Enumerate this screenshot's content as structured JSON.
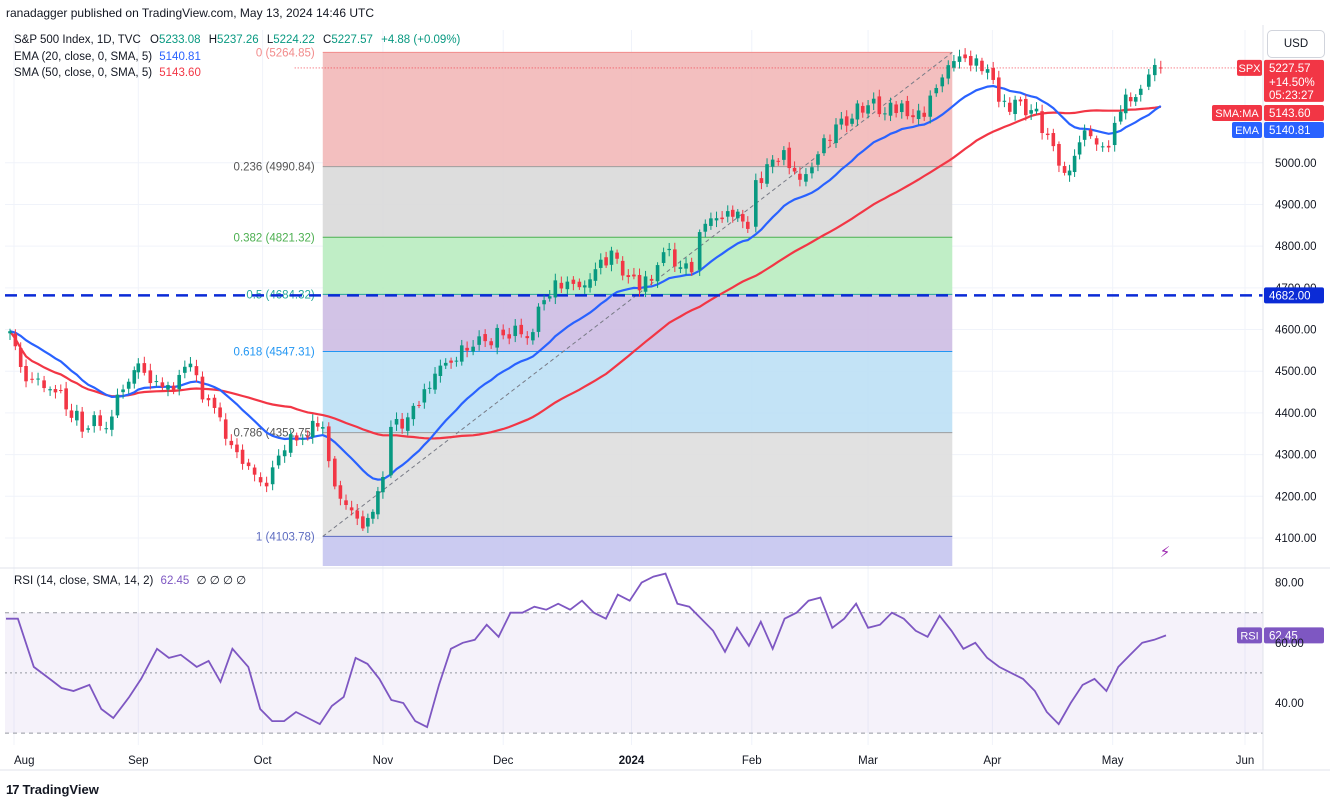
{
  "header": {
    "publisher": "ranadagger published on TradingView.com, May 13, 2024 14:46 UTC",
    "instrument": "S&P 500 Index, 1D, TVC",
    "ohlc": {
      "O": "5233.08",
      "H": "5237.26",
      "L": "5224.22",
      "C": "5227.57",
      "change": "+4.88 (+0.09%)"
    },
    "ema_label": "EMA (20, close, 0, SMA, 5)",
    "ema_value": "5140.81",
    "sma_label": "SMA (50, close, 0, SMA, 5)",
    "sma_value": "5143.60",
    "rsi_label": "RSI (14, close, SMA, 14, 2)",
    "rsi_value": "62.45",
    "rsi_extra": "∅ ∅ ∅ ∅",
    "currency": "USD"
  },
  "branding": {
    "name": "TradingView",
    "mark": "17"
  },
  "colors": {
    "up": "#089981",
    "down": "#f23645",
    "ema": "#2962ff",
    "sma": "#f23645",
    "rsi": "#7e57c2",
    "support": "#0b2bd6",
    "grid": "#f0f3fa",
    "text": "#131722",
    "fib_0": "#f2b8b8",
    "fib_236": "#d9d9d9",
    "fib_382": "#b9ecc0",
    "fib_5": "#cdbde3",
    "fib_618": "#bde0f5",
    "fib_786": "#dedede",
    "fib_1": "#c5c5f0"
  },
  "chart_data": [
    {
      "type": "candlestick",
      "title": "S&P 500 Index, 1D, TVC",
      "xlabel": "",
      "ylabel": "USD",
      "x_tick_labels": [
        "Aug",
        "Sep",
        "Oct",
        "Nov",
        "Dec",
        "2024",
        "Feb",
        "Mar",
        "Apr",
        "May",
        "Jun"
      ],
      "y_tick_labels": [
        "4100.00",
        "4200.00",
        "4300.00",
        "4400.00",
        "4500.00",
        "4600.00",
        "4700.00",
        "4800.00",
        "4900.00",
        "5000.00"
      ],
      "y_ticks": [
        4100,
        4200,
        4300,
        4400,
        4500,
        4600,
        4700,
        4800,
        4900,
        5000
      ],
      "ylim": [
        4040,
        5300
      ],
      "grid": true,
      "close_series": [
        {
          "date": "2023-07-31",
          "close": 4588
        },
        {
          "date": "2023-08-04",
          "close": 4478
        },
        {
          "date": "2023-08-10",
          "close": 4468
        },
        {
          "date": "2023-08-18",
          "close": 4370
        },
        {
          "date": "2023-08-24",
          "close": 4376
        },
        {
          "date": "2023-08-31",
          "close": 4508
        },
        {
          "date": "2023-09-01",
          "close": 4515
        },
        {
          "date": "2023-09-07",
          "close": 4451
        },
        {
          "date": "2023-09-14",
          "close": 4505
        },
        {
          "date": "2023-09-20",
          "close": 4402
        },
        {
          "date": "2023-09-27",
          "close": 4275
        },
        {
          "date": "2023-10-03",
          "close": 4229
        },
        {
          "date": "2023-10-06",
          "close": 4308
        },
        {
          "date": "2023-10-12",
          "close": 4349
        },
        {
          "date": "2023-10-17",
          "close": 4373
        },
        {
          "date": "2023-10-20",
          "close": 4224
        },
        {
          "date": "2023-10-27",
          "close": 4117
        },
        {
          "date": "2023-11-01",
          "close": 4237
        },
        {
          "date": "2023-11-03",
          "close": 4358
        },
        {
          "date": "2023-11-10",
          "close": 4415
        },
        {
          "date": "2023-11-14",
          "close": 4496
        },
        {
          "date": "2023-11-22",
          "close": 4556
        },
        {
          "date": "2023-12-01",
          "close": 4594
        },
        {
          "date": "2023-12-07",
          "close": 4585
        },
        {
          "date": "2023-12-14",
          "close": 4719
        },
        {
          "date": "2023-12-20",
          "close": 4698
        },
        {
          "date": "2023-12-28",
          "close": 4783
        },
        {
          "date": "2024-01-04",
          "close": 4688
        },
        {
          "date": "2024-01-10",
          "close": 4783
        },
        {
          "date": "2024-01-17",
          "close": 4739
        },
        {
          "date": "2024-01-19",
          "close": 4839
        },
        {
          "date": "2024-01-26",
          "close": 4890
        },
        {
          "date": "2024-01-31",
          "close": 4845
        },
        {
          "date": "2024-02-02",
          "close": 4958
        },
        {
          "date": "2024-02-09",
          "close": 5026
        },
        {
          "date": "2024-02-13",
          "close": 4953
        },
        {
          "date": "2024-02-22",
          "close": 5087
        },
        {
          "date": "2024-03-01",
          "close": 5137
        },
        {
          "date": "2024-03-08",
          "close": 5123
        },
        {
          "date": "2024-03-15",
          "close": 5117
        },
        {
          "date": "2024-03-21",
          "close": 5241
        },
        {
          "date": "2024-03-28",
          "close": 5254
        },
        {
          "date": "2024-04-04",
          "close": 5147
        },
        {
          "date": "2024-04-12",
          "close": 5123
        },
        {
          "date": "2024-04-19",
          "close": 4967
        },
        {
          "date": "2024-04-24",
          "close": 5071
        },
        {
          "date": "2024-04-30",
          "close": 5035
        },
        {
          "date": "2024-05-03",
          "close": 5127
        },
        {
          "date": "2024-05-08",
          "close": 5187
        },
        {
          "date": "2024-05-10",
          "close": 5222
        },
        {
          "date": "2024-05-13",
          "close": 5227.57
        }
      ],
      "fibonacci_retracement": [
        {
          "label": "0 (5264.85)",
          "level": 5264.85
        },
        {
          "label": "0.236 (4990.84)",
          "level": 4990.84
        },
        {
          "label": "0.382 (4821.32)",
          "level": 4821.32
        },
        {
          "label": "0.5 (4684.32)",
          "level": 4684.32
        },
        {
          "label": "0.618 (4547.31)",
          "level": 4547.31
        },
        {
          "label": "0.786 (4352.75)",
          "level": 4352.75
        },
        {
          "label": "1 (4103.78)",
          "level": 4103.78
        }
      ],
      "horizontal_line": {
        "value": 4682.0,
        "label": "4682.00"
      },
      "price_tags": [
        {
          "name": "SPX",
          "value": "5227.57",
          "change": "+14.50%",
          "countdown": "05:23:27"
        },
        {
          "name": "SMA:MA",
          "value": "5143.60"
        },
        {
          "name": "EMA",
          "value": "5140.81"
        }
      ],
      "indicators": [
        {
          "name": "EMA 20",
          "last": 5140.81
        },
        {
          "name": "SMA 50",
          "last": 5143.6
        }
      ]
    },
    {
      "type": "line",
      "title": "RSI (14, close, SMA, 14, 2)",
      "y_tick_labels": [
        "40.00",
        "60.00",
        "80.00"
      ],
      "y_ticks": [
        40,
        60,
        80
      ],
      "ylim": [
        27,
        86
      ],
      "bands": [
        30,
        50,
        70
      ],
      "last": {
        "label": "RSI",
        "value": "62.45"
      },
      "series": [
        {
          "name": "RSI",
          "values": [
            [
              0,
              68
            ],
            [
              3,
              68
            ],
            [
              7,
              52
            ],
            [
              11,
              48
            ],
            [
              14,
              45
            ],
            [
              17,
              44
            ],
            [
              21,
              46
            ],
            [
              24,
              38
            ],
            [
              27,
              35
            ],
            [
              31,
              42
            ],
            [
              34,
              48
            ],
            [
              38,
              58
            ],
            [
              41,
              55
            ],
            [
              44,
              56
            ],
            [
              48,
              52
            ],
            [
              51,
              54
            ],
            [
              54,
              47
            ],
            [
              57,
              58
            ],
            [
              61,
              52
            ],
            [
              64,
              38
            ],
            [
              67,
              34
            ],
            [
              70,
              34
            ],
            [
              73,
              37
            ],
            [
              76,
              35
            ],
            [
              79,
              33
            ],
            [
              82,
              39
            ],
            [
              85,
              42
            ],
            [
              88,
              55
            ],
            [
              91,
              53
            ],
            [
              94,
              48
            ],
            [
              97,
              41
            ],
            [
              100,
              40
            ],
            [
              103,
              34
            ],
            [
              106,
              32
            ],
            [
              109,
              46
            ],
            [
              112,
              58
            ],
            [
              115,
              60
            ],
            [
              118,
              61
            ],
            [
              121,
              66
            ],
            [
              124,
              62
            ],
            [
              127,
              70
            ],
            [
              130,
              70
            ],
            [
              133,
              72
            ],
            [
              136,
              71
            ],
            [
              139,
              73
            ],
            [
              142,
              71
            ],
            [
              145,
              74
            ],
            [
              148,
              70
            ],
            [
              151,
              68
            ],
            [
              154,
              76
            ],
            [
              157,
              74
            ],
            [
              160,
              80
            ],
            [
              163,
              82
            ],
            [
              166,
              83
            ],
            [
              169,
              73
            ],
            [
              172,
              72
            ],
            [
              175,
              68
            ],
            [
              178,
              64
            ],
            [
              181,
              57
            ],
            [
              184,
              65
            ],
            [
              187,
              59
            ],
            [
              190,
              67
            ],
            [
              193,
              58
            ],
            [
              196,
              68
            ],
            [
              199,
              70
            ],
            [
              202,
              74
            ],
            [
              205,
              75
            ],
            [
              208,
              65
            ],
            [
              211,
              68
            ],
            [
              214,
              73
            ],
            [
              217,
              65
            ],
            [
              220,
              66
            ],
            [
              223,
              70
            ],
            [
              226,
              68
            ],
            [
              229,
              64
            ],
            [
              232,
              62
            ],
            [
              235,
              69
            ],
            [
              238,
              64
            ],
            [
              241,
              58
            ],
            [
              244,
              60
            ],
            [
              247,
              55
            ],
            [
              250,
              52
            ],
            [
              253,
              50
            ],
            [
              256,
              48
            ],
            [
              259,
              44
            ],
            [
              262,
              37
            ],
            [
              265,
              33
            ],
            [
              268,
              40
            ],
            [
              271,
              46
            ],
            [
              274,
              48
            ],
            [
              277,
              44
            ],
            [
              280,
              52
            ],
            [
              283,
              56
            ],
            [
              286,
              60
            ],
            [
              289,
              61
            ],
            [
              292,
              62.45
            ]
          ]
        }
      ]
    }
  ]
}
